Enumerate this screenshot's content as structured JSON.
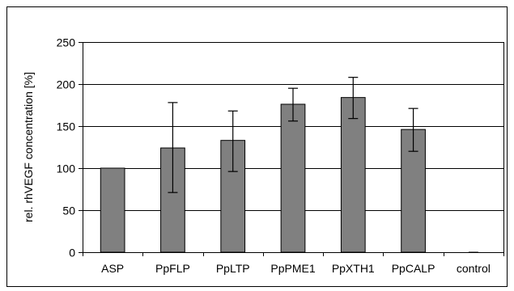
{
  "chart_data": {
    "type": "bar",
    "title": "",
    "xlabel": "",
    "ylabel": "rel. rhVEGF concentration [%]",
    "ylim": [
      0,
      250
    ],
    "yticks": [
      0,
      50,
      100,
      150,
      200,
      250
    ],
    "grid": "horizontal",
    "categories": [
      "ASP",
      "PpFLP",
      "PpLTP",
      "PpPME1",
      "PpXTH1",
      "PpCALP",
      "control"
    ],
    "values": [
      100,
      124,
      133,
      176,
      184,
      146,
      0
    ],
    "error_low": [
      100,
      71,
      96,
      156,
      159,
      120,
      0
    ],
    "error_high": [
      100,
      178,
      168,
      195,
      208,
      171,
      0
    ],
    "bar_color": "#808080",
    "bar_stroke": "#000000",
    "grid_color": "#000000",
    "border_color": "#000000"
  }
}
